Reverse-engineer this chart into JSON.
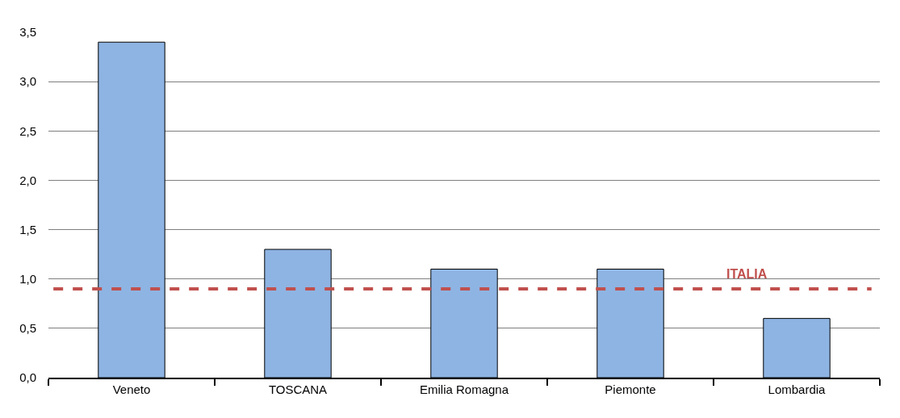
{
  "chart_data": {
    "type": "bar",
    "categories": [
      "Veneto",
      "TOSCANA",
      "Emilia Romagna",
      "Piemonte",
      "Lombardia"
    ],
    "values": [
      3.4,
      1.3,
      1.1,
      1.1,
      0.6
    ],
    "color": "#8eb4e3",
    "ylim": [
      0,
      3.5
    ],
    "yticks": [
      {
        "value": 0,
        "label": "0,0"
      },
      {
        "value": 0.5,
        "label": "0,5"
      },
      {
        "value": 1,
        "label": "1,0"
      },
      {
        "value": 1.5,
        "label": "1,5"
      },
      {
        "value": 2,
        "label": "2,0"
      },
      {
        "value": 2.5,
        "label": "2,5"
      },
      {
        "value": 3,
        "label": "3,0"
      },
      {
        "value": 3.5,
        "label": "3,5"
      }
    ],
    "grid": "y",
    "ref_lines": [
      {
        "axis": "y",
        "value": 0.9,
        "label": "ITALIA",
        "color": "#c0504d",
        "line_style": "dashed"
      }
    ]
  }
}
